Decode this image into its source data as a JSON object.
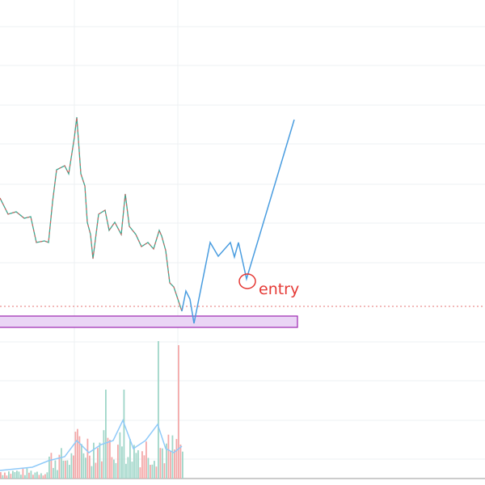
{
  "annotation": {
    "label": "entry"
  }
}
